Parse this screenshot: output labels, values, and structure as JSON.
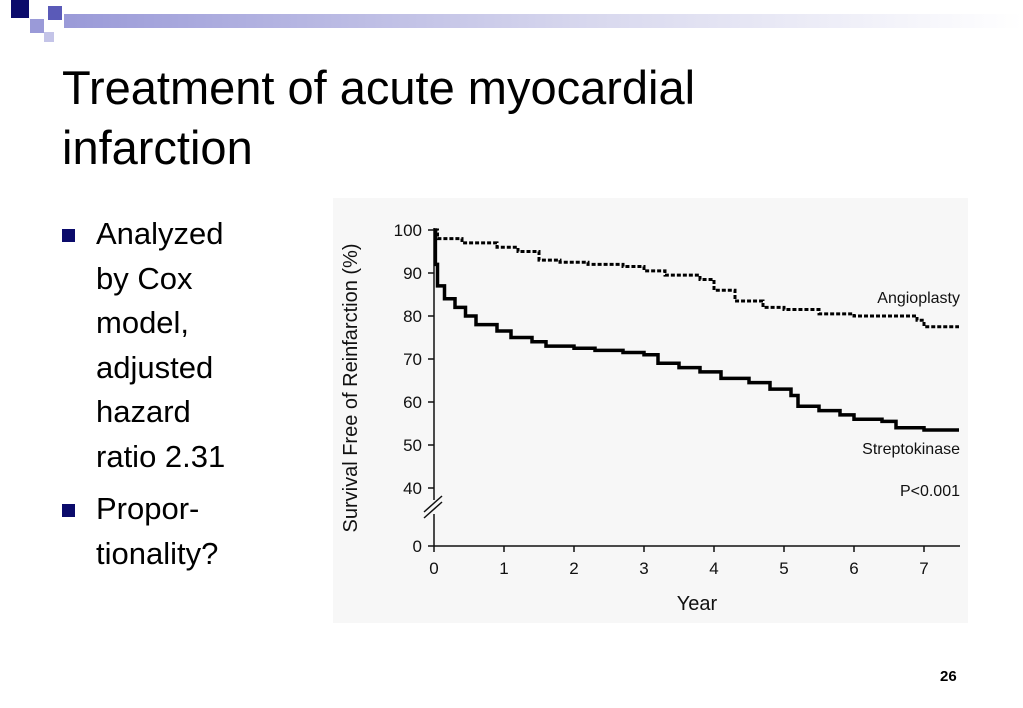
{
  "slide": {
    "title": "Treatment of acute myocardial infarction",
    "bullets": [
      "Analyzed\nby Cox\nmodel,\nadjusted\nhazard\nratio 2.31",
      "Propor-\ntionality?"
    ],
    "page_number": "26"
  },
  "colors": {
    "accent": "#0b0b6b",
    "decor_light": "#9a9ad8"
  },
  "chart_data": {
    "type": "line",
    "title": "",
    "xlabel": "Year",
    "ylabel": "Survival Free of Reinfarction (%)",
    "xlim": [
      0,
      7.5
    ],
    "ylim": [
      0,
      100
    ],
    "axis_break": [
      0,
      40
    ],
    "x_ticks": [
      0,
      1,
      2,
      3,
      4,
      5,
      6,
      7
    ],
    "y_ticks": [
      0,
      40,
      50,
      60,
      70,
      80,
      90,
      100
    ],
    "annotation": "P<0.001",
    "series": [
      {
        "name": "Angioplasty",
        "style": "dashed",
        "points": [
          [
            0,
            100
          ],
          [
            0.05,
            98
          ],
          [
            0.4,
            97
          ],
          [
            0.9,
            96
          ],
          [
            1.2,
            95
          ],
          [
            1.5,
            93
          ],
          [
            1.8,
            92.5
          ],
          [
            2.2,
            92
          ],
          [
            2.7,
            91.5
          ],
          [
            3.0,
            90.5
          ],
          [
            3.3,
            89.5
          ],
          [
            3.8,
            88.5
          ],
          [
            4.0,
            86
          ],
          [
            4.3,
            83.5
          ],
          [
            4.7,
            82
          ],
          [
            5.0,
            81.5
          ],
          [
            5.5,
            80.5
          ],
          [
            6.0,
            80
          ],
          [
            6.9,
            79
          ],
          [
            7.0,
            77.5
          ],
          [
            7.5,
            77.5
          ]
        ]
      },
      {
        "name": "Streptokinase",
        "style": "solid",
        "points": [
          [
            0,
            100
          ],
          [
            0.02,
            92
          ],
          [
            0.05,
            87
          ],
          [
            0.15,
            84
          ],
          [
            0.3,
            82
          ],
          [
            0.45,
            80
          ],
          [
            0.6,
            78
          ],
          [
            0.9,
            76.5
          ],
          [
            1.1,
            75
          ],
          [
            1.4,
            74
          ],
          [
            1.6,
            73
          ],
          [
            2.0,
            72.5
          ],
          [
            2.3,
            72
          ],
          [
            2.7,
            71.5
          ],
          [
            3.0,
            71
          ],
          [
            3.2,
            69
          ],
          [
            3.5,
            68
          ],
          [
            3.8,
            67
          ],
          [
            4.1,
            65.5
          ],
          [
            4.5,
            64.5
          ],
          [
            4.8,
            63
          ],
          [
            5.1,
            61.5
          ],
          [
            5.2,
            59
          ],
          [
            5.5,
            58
          ],
          [
            5.8,
            57
          ],
          [
            6.0,
            56
          ],
          [
            6.4,
            55.5
          ],
          [
            6.6,
            54
          ],
          [
            7.0,
            53.5
          ],
          [
            7.5,
            53.5
          ]
        ]
      }
    ]
  }
}
